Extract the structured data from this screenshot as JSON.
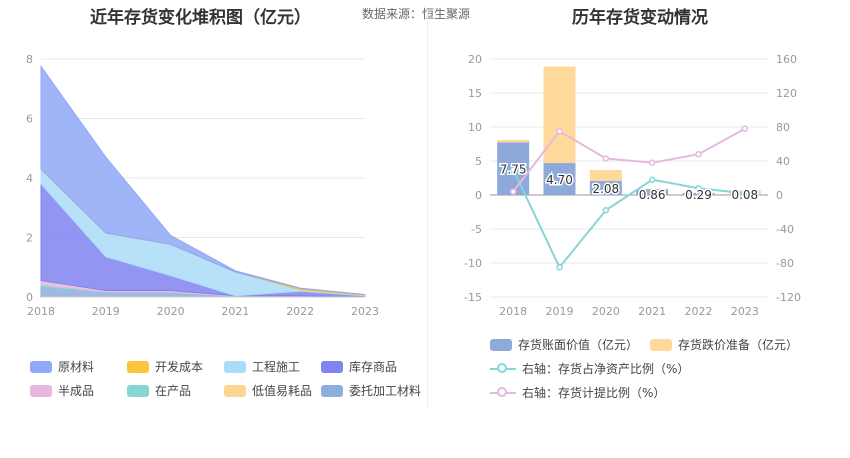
{
  "left_chart": {
    "title": "近年存货变化堆积图（亿元）",
    "source": "数据来源：恒生聚源"
  },
  "right_chart": {
    "title": "历年存货变动情况"
  },
  "colors": {
    "yuancailiao": "#8fa8f7",
    "kaifachengben": "#fcc43a",
    "gongchengshigong": "#a9dcf8",
    "kucunshangpin": "#8083f0",
    "banchengpin": "#e6b8de",
    "zaichanpin": "#86d6d6",
    "dizhiyihaopin": "#fcd494",
    "weituojiagong": "#8eaedb",
    "book_value_bar": "#8eaadb",
    "impairment_bar": "#ffd99a",
    "line_ratio_net_assets": "#86d6d6",
    "line_provision_ratio": "#e6b8de"
  },
  "chart_data": [
    {
      "type": "area",
      "stacked": true,
      "x": [
        "2018",
        "2019",
        "2020",
        "2021",
        "2022",
        "2023"
      ],
      "ylim": [
        0,
        8
      ],
      "yticks": [
        "0",
        "2",
        "4",
        "6",
        "8"
      ],
      "grid": true,
      "legend_position": "bottom",
      "series": [
        {
          "name": "委托加工材料",
          "color_key": "weituojiagong",
          "values": [
            0.35,
            0.15,
            0.15,
            0.02,
            0.02,
            0.01
          ]
        },
        {
          "name": "在产品",
          "color_key": "zaichanpin",
          "values": [
            0.05,
            0.02,
            0.02,
            0.01,
            0.01,
            0.0
          ]
        },
        {
          "name": "半成品",
          "color_key": "banchengpin",
          "values": [
            0.15,
            0.05,
            0.05,
            0.01,
            0.01,
            0.0
          ]
        },
        {
          "name": "库存商品",
          "color_key": "kucunshangpin",
          "values": [
            3.25,
            1.13,
            0.5,
            0.0,
            0.15,
            0.03
          ]
        },
        {
          "name": "工程施工",
          "color_key": "gongchengshigong",
          "values": [
            0.5,
            0.8,
            1.05,
            0.8,
            0.05,
            0.02
          ]
        },
        {
          "name": "低值易耗品",
          "color_key": "dizhiyihaopin",
          "values": [
            0.0,
            0.0,
            0.0,
            0.0,
            0.0,
            0.0
          ]
        },
        {
          "name": "开发成本",
          "color_key": "kaifachengben",
          "values": [
            0.0,
            0.0,
            0.0,
            0.0,
            0.05,
            0.02
          ]
        },
        {
          "name": "原材料",
          "color_key": "yuancailiao",
          "values": [
            3.45,
            2.55,
            0.3,
            0.04,
            0.01,
            0.0
          ]
        }
      ],
      "legend_order": [
        "原材料",
        "开发成本",
        "工程施工",
        "库存商品",
        "半成品",
        "在产品",
        "低值易耗品",
        "委托加工材料"
      ]
    },
    {
      "type": "bar+line",
      "x": [
        "2018",
        "2019",
        "2020",
        "2021",
        "2022",
        "2023"
      ],
      "left_ylim": [
        -15,
        20
      ],
      "left_yticks": [
        "-15",
        "-10",
        "-5",
        "0",
        "5",
        "10",
        "15",
        "20"
      ],
      "right_ylim": [
        -120,
        160
      ],
      "right_yticks": [
        "-120",
        "-80",
        "-40",
        "0",
        "40",
        "80",
        "120",
        "160"
      ],
      "grid": true,
      "legend_position": "bottom",
      "bars": [
        {
          "name": "存货账面价值（亿元）",
          "color_key": "book_value_bar",
          "values": [
            7.75,
            4.7,
            2.08,
            0.86,
            0.29,
            0.08
          ],
          "labels": [
            "7.75",
            "4.70",
            "2.08",
            "0.86",
            "0.29",
            "0.08"
          ]
        },
        {
          "name": "存货跌价准备（亿元）",
          "color_key": "impairment_bar",
          "values": [
            0.35,
            14.2,
            1.6,
            0.05,
            0.03,
            0.6
          ]
        }
      ],
      "lines": [
        {
          "name": "右轴：存货占净资产比例（%）",
          "color_key": "line_ratio_net_assets",
          "values": [
            30,
            -85,
            -18,
            18,
            8,
            2
          ]
        },
        {
          "name": "右轴：存货计提比例（%）",
          "color_key": "line_provision_ratio",
          "values": [
            4,
            75,
            43,
            38,
            48,
            78
          ]
        }
      ]
    }
  ]
}
